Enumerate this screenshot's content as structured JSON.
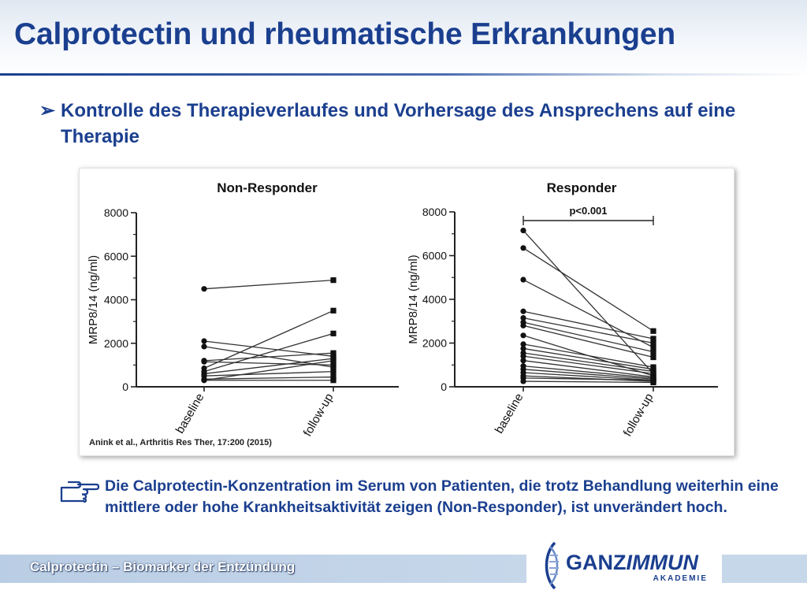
{
  "slide": {
    "title": "Calprotectin und rheumatische Erkrankungen",
    "bullet_marker": "➢",
    "bullet_text": "Kontrolle des Therapieverlaufes und Vorhersage des Ansprechens auf eine Therapie",
    "citation": "Anink et al., Arthritis Res Ther, 17:200 (2015)",
    "note_icon": "pointing-hand-icon",
    "note_text": "Die Calprotectin-Konzentration im Serum von Patienten, die trotz Behandlung weiterhin eine mittlere oder hohe Krankheitsaktivität zeigen (Non-Responder), ist unverändert hoch.",
    "footer_text": "Calprotectin – Biomarker der Entzündung",
    "logo": {
      "main_plain": "GANZ",
      "main_italic": "IMMUN",
      "sub": "AKADEMIE"
    },
    "colors": {
      "title_blue": "#1b3f8f",
      "footer_band": "#c7d7ea",
      "line_dark": "#333333"
    }
  },
  "chart_data": [
    {
      "type": "line",
      "title": "Non-Responder",
      "ylabel": "MRP8/14 (ng/ml)",
      "xlabel": "",
      "categories": [
        "baseline",
        "follow-up"
      ],
      "yticks": [
        0,
        2000,
        4000,
        6000,
        8000
      ],
      "ylim": [
        0,
        8000
      ],
      "grid": false,
      "legend": "none",
      "series": [
        {
          "values": [
            4500,
            4900
          ]
        },
        {
          "values": [
            2100,
            1400
          ]
        },
        {
          "values": [
            1850,
            900
          ]
        },
        {
          "values": [
            1200,
            1550
          ]
        },
        {
          "values": [
            1150,
            1000
          ]
        },
        {
          "values": [
            850,
            3500
          ]
        },
        {
          "values": [
            700,
            2450
          ]
        },
        {
          "values": [
            600,
            1300
          ]
        },
        {
          "values": [
            500,
            700
          ]
        },
        {
          "values": [
            350,
            450
          ]
        },
        {
          "values": [
            300,
            1200
          ]
        },
        {
          "values": [
            300,
            300
          ]
        }
      ]
    },
    {
      "type": "line",
      "title": "Responder",
      "ylabel": "MRP8/14 (ng/ml)",
      "xlabel": "",
      "categories": [
        "baseline",
        "follow-up"
      ],
      "yticks": [
        0,
        2000,
        4000,
        6000,
        8000
      ],
      "ylim": [
        0,
        8000
      ],
      "grid": false,
      "legend": "none",
      "annotation": "p<0.001",
      "series": [
        {
          "values": [
            7150,
            600
          ]
        },
        {
          "values": [
            6350,
            2550
          ]
        },
        {
          "values": [
            4900,
            1800
          ]
        },
        {
          "values": [
            3450,
            2200
          ]
        },
        {
          "values": [
            3150,
            2000
          ]
        },
        {
          "values": [
            2950,
            1600
          ]
        },
        {
          "values": [
            2800,
            1350
          ]
        },
        {
          "values": [
            2350,
            500
          ]
        },
        {
          "values": [
            1950,
            900
          ]
        },
        {
          "values": [
            1750,
            800
          ]
        },
        {
          "values": [
            1550,
            700
          ]
        },
        {
          "values": [
            1400,
            600
          ]
        },
        {
          "values": [
            1200,
            450
          ]
        },
        {
          "values": [
            950,
            400
          ]
        },
        {
          "values": [
            800,
            350
          ]
        },
        {
          "values": [
            650,
            300
          ]
        },
        {
          "values": [
            500,
            250
          ]
        },
        {
          "values": [
            400,
            300
          ]
        },
        {
          "values": [
            250,
            200
          ]
        }
      ]
    }
  ]
}
